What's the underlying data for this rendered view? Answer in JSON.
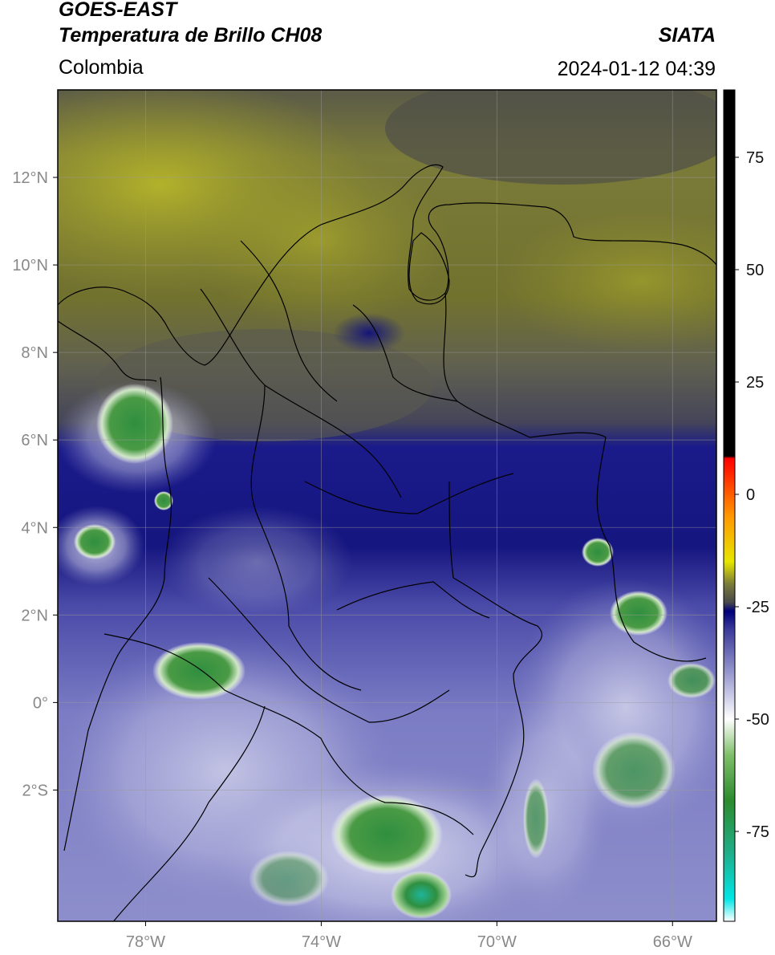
{
  "header": {
    "satellite": "GOES-EAST",
    "product": "Temperatura de Brillo CH08",
    "region": "Colombia",
    "organization": "SIATA",
    "timestamp": "2024-01-12 04:39"
  },
  "map": {
    "lon_range": [
      -80,
      -65
    ],
    "lat_range": [
      -5,
      14
    ],
    "grid": true,
    "lon_ticks": [
      {
        "value": -78,
        "label": "78°W"
      },
      {
        "value": -74,
        "label": "74°W"
      },
      {
        "value": -70,
        "label": "70°W"
      },
      {
        "value": -66,
        "label": "66°W"
      }
    ],
    "lat_ticks": [
      {
        "value": 12,
        "label": "12°N"
      },
      {
        "value": 10,
        "label": "10°N"
      },
      {
        "value": 8,
        "label": "8°N"
      },
      {
        "value": 6,
        "label": "6°N"
      },
      {
        "value": 4,
        "label": "4°N"
      },
      {
        "value": 2,
        "label": "2°N"
      },
      {
        "value": 0,
        "label": "0°"
      },
      {
        "value": -2,
        "label": "2°S"
      }
    ]
  },
  "colorbar": {
    "range": [
      -95,
      90
    ],
    "ticks": [
      {
        "value": 75,
        "label": "75"
      },
      {
        "value": 50,
        "label": "50"
      },
      {
        "value": 25,
        "label": "25"
      },
      {
        "value": 0,
        "label": "0"
      },
      {
        "value": -25,
        "label": "-25"
      },
      {
        "value": -50,
        "label": "-50"
      },
      {
        "value": -75,
        "label": "-75"
      }
    ],
    "stops": [
      {
        "value": -95,
        "color": "#ffffff"
      },
      {
        "value": -90,
        "color": "#00e6e6"
      },
      {
        "value": -80,
        "color": "#1fae8a"
      },
      {
        "value": -68,
        "color": "#2e8b2e"
      },
      {
        "value": -58,
        "color": "#7fbf6a"
      },
      {
        "value": -50,
        "color": "#ffffff"
      },
      {
        "value": -40,
        "color": "#9a9ad0"
      },
      {
        "value": -30,
        "color": "#3a3a9a"
      },
      {
        "value": -26,
        "color": "#00007a"
      },
      {
        "value": -24,
        "color": "#4a4a4a"
      },
      {
        "value": -20,
        "color": "#7a7a3a"
      },
      {
        "value": -15,
        "color": "#e6e600"
      },
      {
        "value": -5,
        "color": "#ff9900"
      },
      {
        "value": 5,
        "color": "#ff2200"
      },
      {
        "value": 8,
        "color": "#ff0000"
      },
      {
        "value": 8.5,
        "color": "#000000"
      },
      {
        "value": 90,
        "color": "#000000"
      }
    ]
  },
  "colors": {
    "dry_air_north": "#a9ab2a",
    "dry_air_gray": "#555548",
    "moist_band": "#1b1b8a",
    "cloud_south": "#7a7bc2",
    "cold_cloud_tops": "#3c9a4c",
    "very_cold_tops": "#20b39a"
  }
}
